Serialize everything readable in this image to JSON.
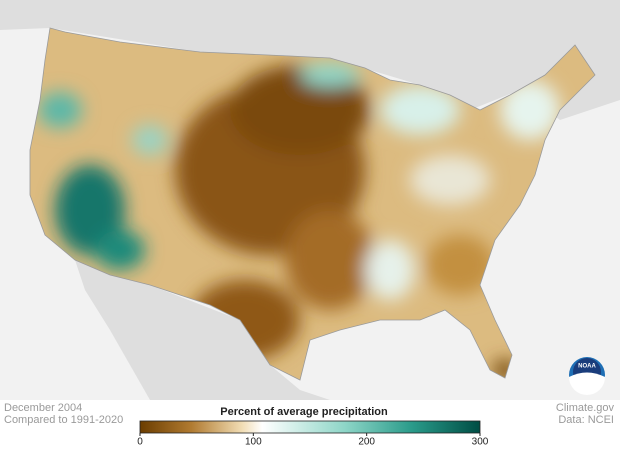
{
  "caption": {
    "date": "December 2004",
    "baseline": "Compared to 1991-2020"
  },
  "credits": {
    "site": "Climate.gov",
    "source": "Data: NCEI",
    "logo": "NOAA"
  },
  "legend": {
    "title": "Percent of average precipitation",
    "range": [
      0,
      300
    ],
    "ticks": [
      0,
      100,
      200,
      300
    ]
  }
}
